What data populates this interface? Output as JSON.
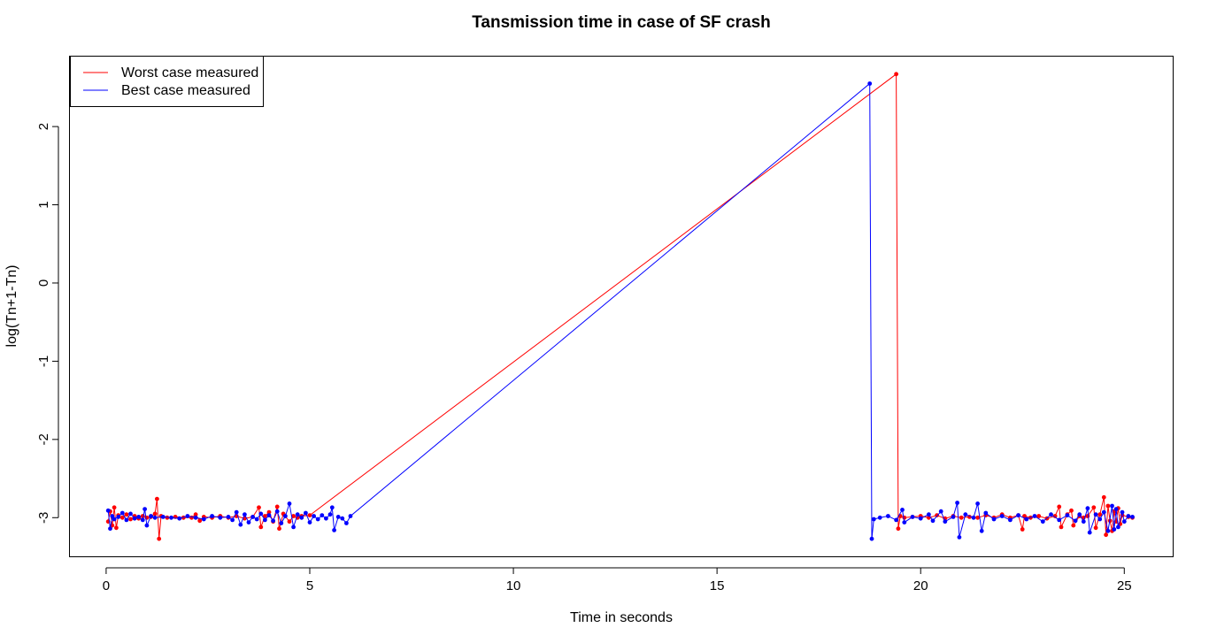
{
  "chart_data": {
    "type": "line",
    "title": "Tansmission time in case of SF crash",
    "xlabel": "Time in seconds",
    "ylabel": "log(Tn+1-Tn)",
    "xlim": [
      -0.9,
      26.2
    ],
    "ylim": [
      -3.5,
      2.9
    ],
    "x_ticks": [
      0,
      5,
      10,
      15,
      20,
      25
    ],
    "y_ticks": [
      -3,
      -2,
      -1,
      0,
      1,
      2
    ],
    "grid": false,
    "legend_position": "top-left",
    "series": [
      {
        "name": "Worst case measured",
        "color": "#ff0000",
        "points": [
          [
            0.05,
            -3.05
          ],
          [
            0.1,
            -2.92
          ],
          [
            0.15,
            -3.1
          ],
          [
            0.2,
            -2.87
          ],
          [
            0.25,
            -3.13
          ],
          [
            0.3,
            -2.97
          ],
          [
            0.4,
            -3.0
          ],
          [
            0.5,
            -2.96
          ],
          [
            0.6,
            -3.02
          ],
          [
            0.7,
            -2.98
          ],
          [
            0.8,
            -3.01
          ],
          [
            0.9,
            -2.98
          ],
          [
            1.0,
            -3.0
          ],
          [
            1.1,
            -2.99
          ],
          [
            1.2,
            -2.95
          ],
          [
            1.25,
            -2.76
          ],
          [
            1.3,
            -3.27
          ],
          [
            1.35,
            -2.98
          ],
          [
            1.5,
            -3.0
          ],
          [
            1.7,
            -2.99
          ],
          [
            1.9,
            -3.0
          ],
          [
            2.1,
            -3.0
          ],
          [
            2.2,
            -2.96
          ],
          [
            2.3,
            -3.04
          ],
          [
            2.4,
            -2.99
          ],
          [
            2.6,
            -3.0
          ],
          [
            2.8,
            -2.98
          ],
          [
            3.0,
            -3.0
          ],
          [
            3.2,
            -2.98
          ],
          [
            3.4,
            -3.01
          ],
          [
            3.6,
            -2.99
          ],
          [
            3.75,
            -2.87
          ],
          [
            3.8,
            -3.12
          ],
          [
            3.9,
            -2.98
          ],
          [
            4.0,
            -2.93
          ],
          [
            4.1,
            -3.05
          ],
          [
            4.2,
            -2.86
          ],
          [
            4.25,
            -3.14
          ],
          [
            4.35,
            -2.95
          ],
          [
            4.5,
            -3.05
          ],
          [
            4.6,
            -2.98
          ],
          [
            4.7,
            -3.0
          ],
          [
            4.8,
            -2.98
          ],
          [
            5.0,
            -2.97
          ],
          [
            19.4,
            2.67
          ],
          [
            19.45,
            -3.14
          ],
          [
            19.5,
            -2.98
          ],
          [
            19.6,
            -3.0
          ],
          [
            19.8,
            -2.99
          ],
          [
            20.0,
            -2.98
          ],
          [
            20.2,
            -3.0
          ],
          [
            20.4,
            -2.97
          ],
          [
            20.6,
            -3.01
          ],
          [
            20.8,
            -2.98
          ],
          [
            21.0,
            -3.0
          ],
          [
            21.2,
            -2.99
          ],
          [
            21.4,
            -3.0
          ],
          [
            21.6,
            -2.97
          ],
          [
            21.8,
            -3.0
          ],
          [
            22.0,
            -2.96
          ],
          [
            22.2,
            -3.0
          ],
          [
            22.4,
            -2.97
          ],
          [
            22.5,
            -3.15
          ],
          [
            22.55,
            -2.98
          ],
          [
            22.7,
            -3.0
          ],
          [
            22.9,
            -2.98
          ],
          [
            23.1,
            -3.01
          ],
          [
            23.3,
            -2.98
          ],
          [
            23.4,
            -2.86
          ],
          [
            23.45,
            -3.12
          ],
          [
            23.6,
            -2.96
          ],
          [
            23.7,
            -2.91
          ],
          [
            23.75,
            -3.1
          ],
          [
            23.9,
            -2.98
          ],
          [
            24.0,
            -3.0
          ],
          [
            24.1,
            -2.98
          ],
          [
            24.25,
            -2.87
          ],
          [
            24.3,
            -3.13
          ],
          [
            24.4,
            -2.96
          ],
          [
            24.5,
            -2.74
          ],
          [
            24.55,
            -3.22
          ],
          [
            24.6,
            -2.85
          ],
          [
            24.65,
            -3.04
          ],
          [
            24.7,
            -3.17
          ],
          [
            24.75,
            -2.92
          ],
          [
            24.8,
            -3.05
          ],
          [
            24.85,
            -2.88
          ],
          [
            24.9,
            -3.08
          ],
          [
            24.95,
            -2.97
          ],
          [
            25.1,
            -2.99
          ],
          [
            25.2,
            -3.0
          ]
        ]
      },
      {
        "name": "Best case measured",
        "color": "#0000ff",
        "points": [
          [
            0.05,
            -2.91
          ],
          [
            0.1,
            -3.14
          ],
          [
            0.15,
            -2.98
          ],
          [
            0.2,
            -3.02
          ],
          [
            0.3,
            -2.99
          ],
          [
            0.4,
            -2.94
          ],
          [
            0.5,
            -3.03
          ],
          [
            0.6,
            -2.95
          ],
          [
            0.7,
            -3.01
          ],
          [
            0.8,
            -2.99
          ],
          [
            0.9,
            -3.03
          ],
          [
            0.95,
            -2.89
          ],
          [
            1.0,
            -3.1
          ],
          [
            1.1,
            -2.98
          ],
          [
            1.2,
            -3.0
          ],
          [
            1.4,
            -2.99
          ],
          [
            1.6,
            -3.0
          ],
          [
            1.8,
            -3.01
          ],
          [
            2.0,
            -2.98
          ],
          [
            2.2,
            -3.0
          ],
          [
            2.4,
            -3.02
          ],
          [
            2.6,
            -2.98
          ],
          [
            2.8,
            -3.0
          ],
          [
            3.0,
            -2.99
          ],
          [
            3.1,
            -3.03
          ],
          [
            3.2,
            -2.93
          ],
          [
            3.3,
            -3.09
          ],
          [
            3.4,
            -2.96
          ],
          [
            3.5,
            -3.06
          ],
          [
            3.6,
            -2.99
          ],
          [
            3.7,
            -3.02
          ],
          [
            3.8,
            -2.95
          ],
          [
            3.9,
            -3.03
          ],
          [
            4.0,
            -2.97
          ],
          [
            4.1,
            -3.04
          ],
          [
            4.2,
            -2.92
          ],
          [
            4.3,
            -3.07
          ],
          [
            4.4,
            -2.98
          ],
          [
            4.5,
            -2.82
          ],
          [
            4.6,
            -3.12
          ],
          [
            4.7,
            -2.96
          ],
          [
            4.8,
            -3.0
          ],
          [
            4.9,
            -2.94
          ],
          [
            5.0,
            -3.06
          ],
          [
            5.1,
            -2.98
          ],
          [
            5.2,
            -3.02
          ],
          [
            5.3,
            -2.97
          ],
          [
            5.4,
            -3.01
          ],
          [
            5.5,
            -2.96
          ],
          [
            5.55,
            -2.87
          ],
          [
            5.6,
            -3.16
          ],
          [
            5.7,
            -2.99
          ],
          [
            5.8,
            -3.01
          ],
          [
            5.9,
            -3.07
          ],
          [
            6.0,
            -2.98
          ],
          [
            18.75,
            2.55
          ],
          [
            18.8,
            -3.27
          ],
          [
            18.85,
            -3.02
          ],
          [
            19.0,
            -3.0
          ],
          [
            19.2,
            -2.98
          ],
          [
            19.4,
            -3.03
          ],
          [
            19.55,
            -2.9
          ],
          [
            19.6,
            -3.06
          ],
          [
            19.8,
            -2.99
          ],
          [
            20.0,
            -3.01
          ],
          [
            20.2,
            -2.96
          ],
          [
            20.3,
            -3.04
          ],
          [
            20.5,
            -2.92
          ],
          [
            20.6,
            -3.05
          ],
          [
            20.8,
            -2.99
          ],
          [
            20.9,
            -2.81
          ],
          [
            20.95,
            -3.25
          ],
          [
            21.1,
            -2.96
          ],
          [
            21.3,
            -3.0
          ],
          [
            21.4,
            -2.82
          ],
          [
            21.5,
            -3.17
          ],
          [
            21.6,
            -2.94
          ],
          [
            21.8,
            -3.02
          ],
          [
            22.0,
            -2.98
          ],
          [
            22.2,
            -3.03
          ],
          [
            22.4,
            -2.97
          ],
          [
            22.6,
            -3.02
          ],
          [
            22.8,
            -2.98
          ],
          [
            23.0,
            -3.05
          ],
          [
            23.2,
            -2.96
          ],
          [
            23.4,
            -3.03
          ],
          [
            23.6,
            -2.97
          ],
          [
            23.8,
            -3.04
          ],
          [
            23.9,
            -2.96
          ],
          [
            24.0,
            -3.05
          ],
          [
            24.1,
            -2.88
          ],
          [
            24.15,
            -3.19
          ],
          [
            24.3,
            -2.96
          ],
          [
            24.4,
            -3.02
          ],
          [
            24.5,
            -2.93
          ],
          [
            24.6,
            -3.17
          ],
          [
            24.7,
            -2.85
          ],
          [
            24.75,
            -3.15
          ],
          [
            24.8,
            -2.89
          ],
          [
            24.85,
            -3.12
          ],
          [
            24.95,
            -2.93
          ],
          [
            25.0,
            -3.05
          ],
          [
            25.1,
            -2.98
          ],
          [
            25.2,
            -2.99
          ]
        ]
      }
    ]
  }
}
